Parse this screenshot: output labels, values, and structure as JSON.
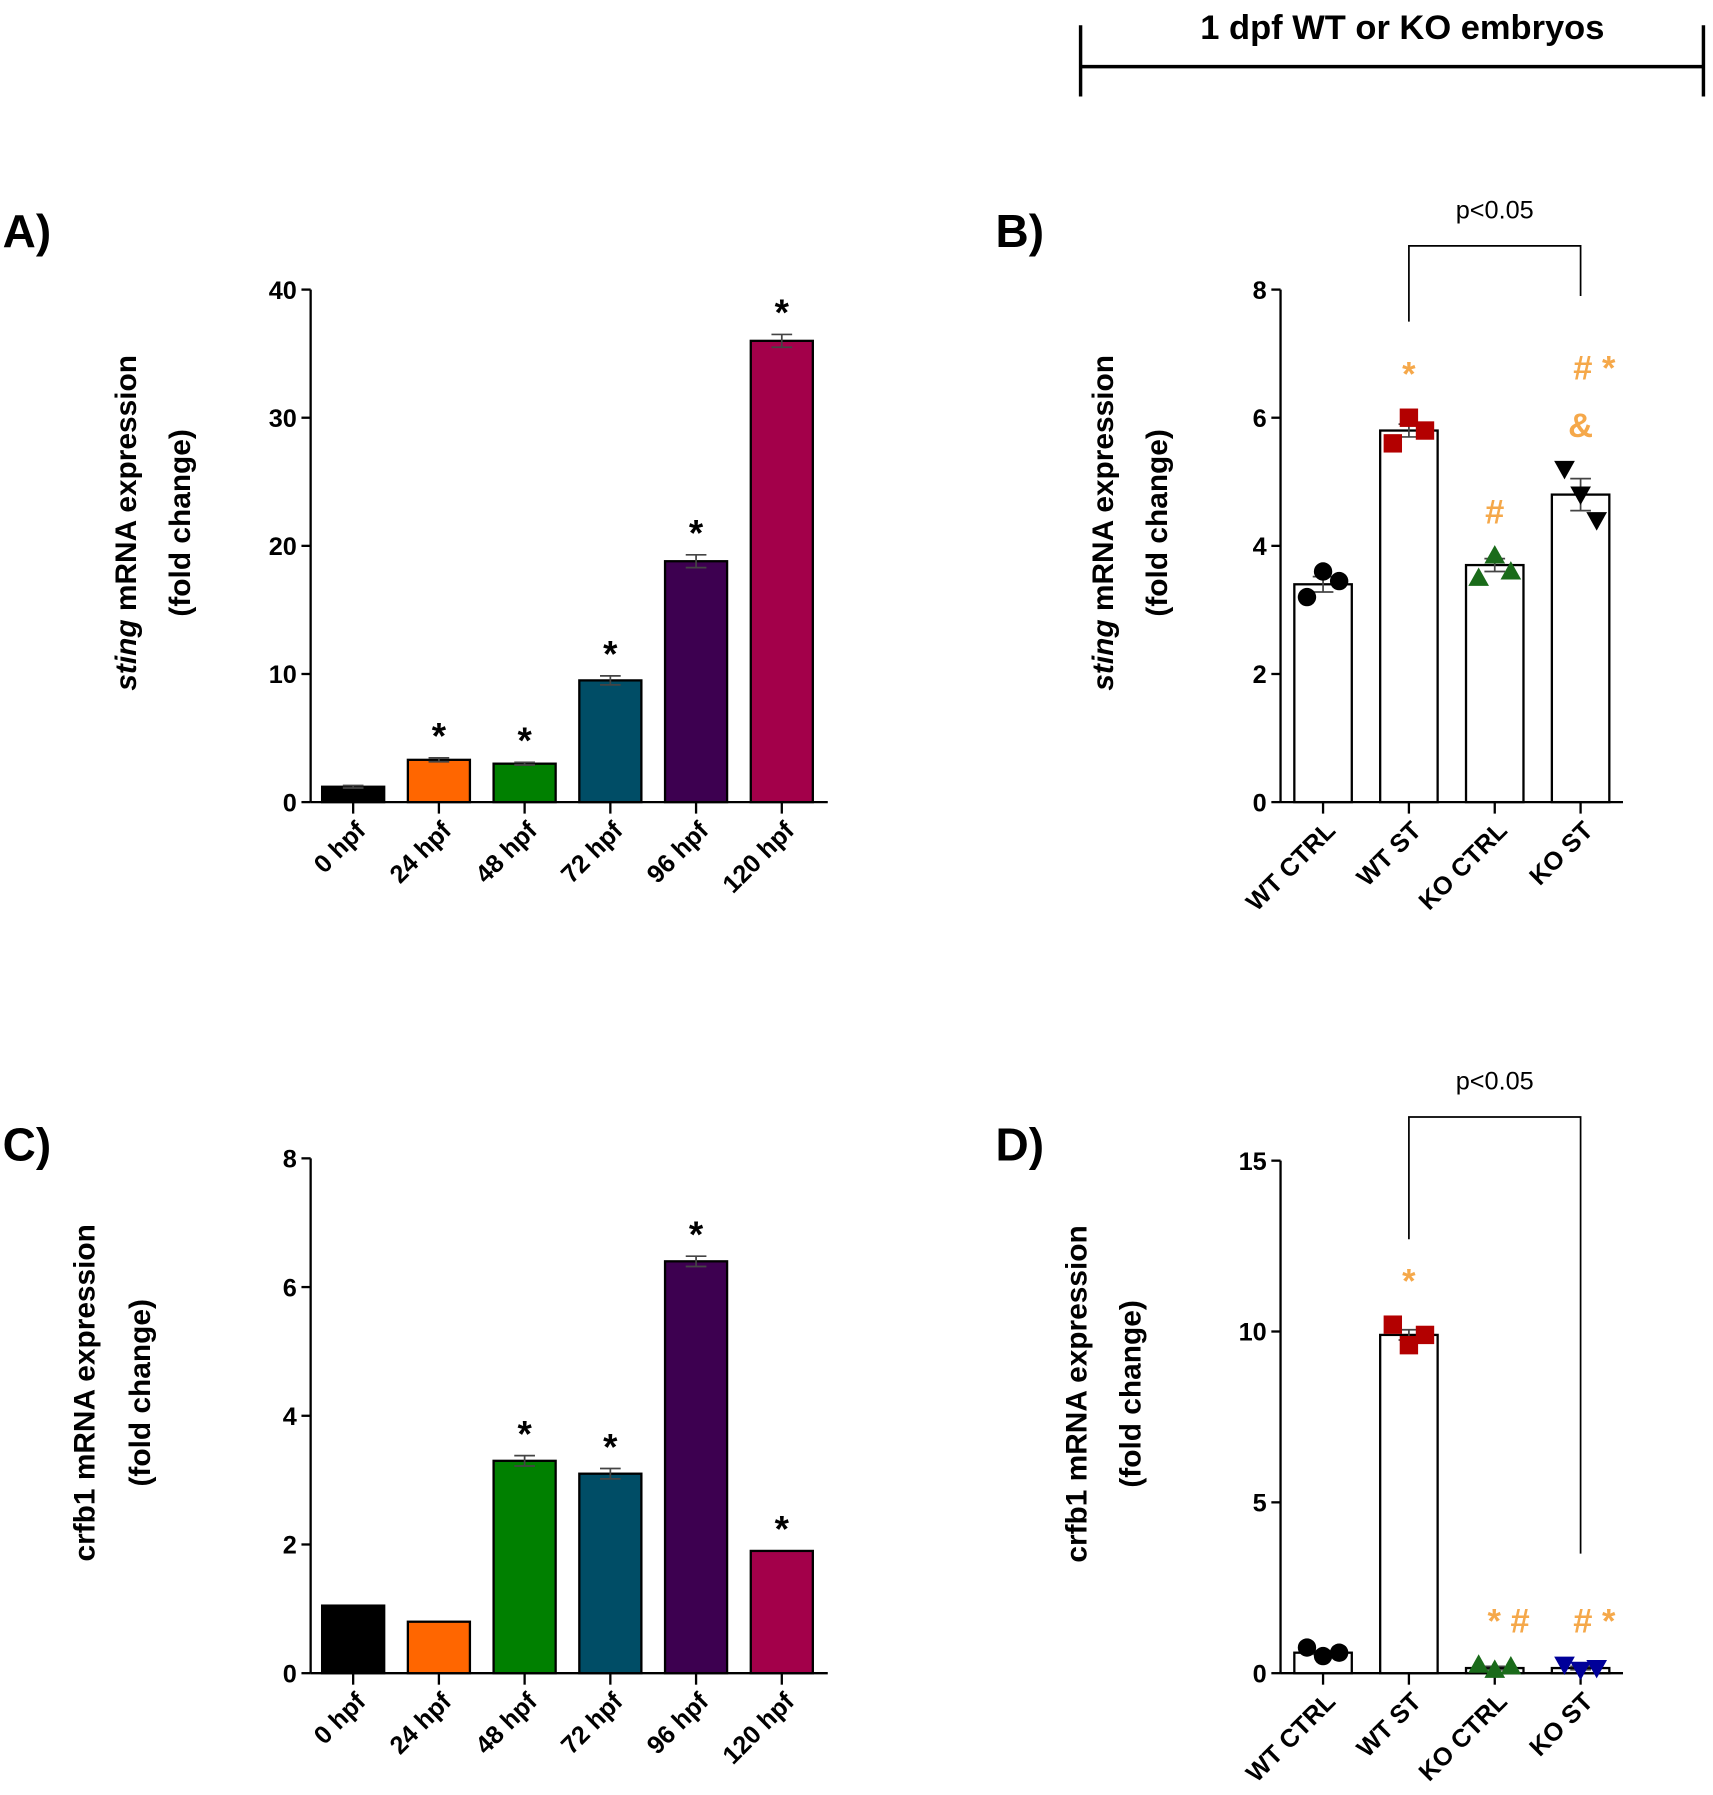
{
  "header": {
    "label": "1 dpf WT or KO embryos"
  },
  "chart_data": [
    {
      "id": "A",
      "panel_label": "A)",
      "type": "bar",
      "ylabel_italic": "sting",
      "ylabel_rest": " mRNA expression",
      "ylabel2": "(fold change)",
      "categories": [
        "0 hpf",
        "24 hpf",
        "48 hpf",
        "72 hpf",
        "96 hpf",
        "120 hpf"
      ],
      "values": [
        1.2,
        3.3,
        3.0,
        9.5,
        18.8,
        36.0
      ],
      "errors": [
        0.1,
        0.15,
        0.1,
        0.35,
        0.5,
        0.5
      ],
      "colors": [
        "#000000",
        "#ff6600",
        "#008000",
        "#004d66",
        "#3d0050",
        "#a3004a"
      ],
      "annotations": [
        "",
        "*",
        "*",
        "*",
        "*",
        "*"
      ],
      "ylim": [
        0,
        40
      ],
      "yticks": [
        "0",
        "10",
        "20",
        "30",
        "40"
      ]
    },
    {
      "id": "B",
      "panel_label": "B)",
      "type": "bar",
      "ylabel_italic": "sting",
      "ylabel_rest": " mRNA expression",
      "ylabel2": "(fold change)",
      "categories": [
        "WT CTRL",
        "WT ST",
        "KO CTRL",
        "KO ST"
      ],
      "values": [
        3.4,
        5.8,
        3.7,
        4.8
      ],
      "errors": [
        0.12,
        0.1,
        0.1,
        0.25
      ],
      "points": [
        [
          3.2,
          3.6,
          3.45
        ],
        [
          5.6,
          6.0,
          5.8
        ],
        [
          3.5,
          3.85,
          3.6
        ],
        [
          5.2,
          4.8,
          4.4
        ]
      ],
      "markers": [
        "circle",
        "square",
        "triangle",
        "triangle-down"
      ],
      "marker_colors": [
        "#000000",
        "#b30000",
        "#1a6b1a",
        "#000000"
      ],
      "annotations": [
        [],
        [
          "*"
        ],
        [
          "#"
        ],
        [
          "&",
          "# *"
        ]
      ],
      "annotation_color": "#f5a84a",
      "ylim": [
        0,
        8
      ],
      "yticks": [
        "0",
        "2",
        "4",
        "6",
        "8"
      ],
      "bracket": {
        "from": "WT ST",
        "to": "KO ST",
        "label": "p<0.05"
      }
    },
    {
      "id": "C",
      "panel_label": "C)",
      "type": "bar",
      "ylabel_italic": "",
      "ylabel_rest": "crfb1 mRNA expression",
      "ylabel2": "(fold change)",
      "categories": [
        "0 hpf",
        "24 hpf",
        "48 hpf",
        "72 hpf",
        "96 hpf",
        "120 hpf"
      ],
      "values": [
        1.05,
        0.8,
        3.3,
        3.1,
        6.4,
        1.9
      ],
      "errors": [
        0,
        0,
        0.08,
        0.08,
        0.08,
        0
      ],
      "colors": [
        "#000000",
        "#ff6600",
        "#008000",
        "#004d66",
        "#3d0050",
        "#a3004a"
      ],
      "annotations": [
        "",
        "",
        "*",
        "*",
        "*",
        "*"
      ],
      "ylim": [
        0,
        8
      ],
      "yticks": [
        "0",
        "2",
        "4",
        "6",
        "8"
      ]
    },
    {
      "id": "D",
      "panel_label": "D)",
      "type": "bar",
      "ylabel_italic": "",
      "ylabel_rest": "crfb1 mRNA expression",
      "ylabel2": "(fold change)",
      "categories": [
        "WT CTRL",
        "WT ST",
        "KO CTRL",
        "KO ST"
      ],
      "values": [
        0.6,
        9.9,
        0.15,
        0.15
      ],
      "errors": [
        0.05,
        0.15,
        0.05,
        0.05
      ],
      "points": [
        [
          0.75,
          0.5,
          0.6
        ],
        [
          10.2,
          9.6,
          9.9
        ],
        [
          0.25,
          0.1,
          0.2
        ],
        [
          0.25,
          0.1,
          0.15
        ]
      ],
      "markers": [
        "circle",
        "square",
        "triangle",
        "triangle-down"
      ],
      "marker_colors": [
        "#000000",
        "#b30000",
        "#1a6b1a",
        "#000099"
      ],
      "annotations": [
        [],
        [
          "*"
        ],
        [
          "* #"
        ],
        [
          "# *"
        ]
      ],
      "annotation_color": "#f5a84a",
      "ylim": [
        0,
        15
      ],
      "yticks": [
        "0",
        "5",
        "10",
        "15"
      ],
      "bracket": {
        "from": "WT ST",
        "to": "KO ST",
        "label": "p<0.05"
      }
    }
  ]
}
